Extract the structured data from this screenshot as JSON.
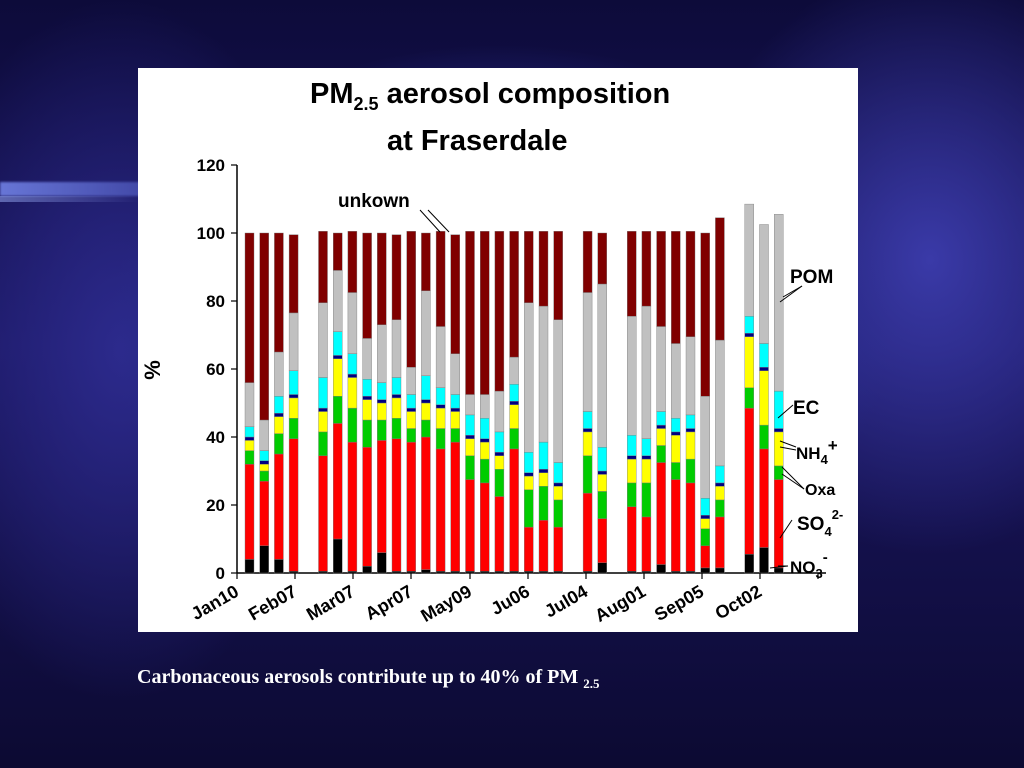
{
  "slide": {
    "caption_main": "Carbonaceous aerosols contribute up to 40% of PM",
    "caption_sub": "2.5"
  },
  "chart_data": {
    "type": "bar",
    "stacked": true,
    "title_line1_main": "PM",
    "title_line1_sub": "2.5",
    "title_line1_rest": " aerosol composition",
    "title_line2": "at Fraserdale",
    "ylabel": "%",
    "xlabel": "",
    "ylim": [
      0,
      120
    ],
    "yticks": [
      0,
      20,
      40,
      60,
      80,
      100,
      120
    ],
    "xtick_labels": [
      "Jan10",
      "Feb07",
      "Mar07",
      "Apr07",
      "May09",
      "Ju06",
      "Jul04",
      "Aug01",
      "Sep05",
      "Oct02"
    ],
    "grid": false,
    "legend_placement": "right, annotations with pointer lines",
    "series_order": [
      "NO3",
      "SO4",
      "Oxa",
      "NH4",
      "EC",
      "POM",
      "unknown"
    ],
    "series_colors": {
      "NO3": "#000000",
      "SO4": "#ff0000",
      "Oxa": "#00cc00",
      "NH4": "#ffff00",
      "EC": "#000080",
      "POM": "#00ffff",
      "unknown_gray": "#c0c0c0",
      "unknown_dark": "#800000"
    },
    "annotations": {
      "unknown": "unkown",
      "pom": "POM",
      "ec": "EC",
      "nh4": "NH",
      "nh4_sub": "4",
      "nh4_sup": "+",
      "oxa": "Oxa",
      "so4": "SO",
      "so4_sub": "4",
      "so4_sup": "2-",
      "no3": "NO",
      "no3_sub": "3",
      "no3_sup": "-"
    },
    "bars": [
      {
        "NO3": 4,
        "SO4": 28,
        "Oxa": 4,
        "NH4": 3,
        "EC": 1,
        "POM": 3,
        "gray": 13,
        "dark": 44
      },
      {
        "NO3": 8,
        "SO4": 19,
        "Oxa": 3,
        "NH4": 2,
        "EC": 1,
        "POM": 3,
        "gray": 9,
        "dark": 55
      },
      {
        "NO3": 4,
        "SO4": 31,
        "Oxa": 6,
        "NH4": 5,
        "EC": 1,
        "POM": 5,
        "gray": 13,
        "dark": 35
      },
      {
        "NO3": 0.5,
        "SO4": 39,
        "Oxa": 6,
        "NH4": 6,
        "EC": 1,
        "POM": 7,
        "gray": 17,
        "dark": 23
      },
      {
        "gap": true
      },
      {
        "NO3": 0.5,
        "SO4": 34,
        "Oxa": 7,
        "NH4": 6,
        "EC": 1,
        "POM": 9,
        "gray": 22,
        "dark": 21
      },
      {
        "NO3": 10,
        "SO4": 34,
        "Oxa": 8,
        "NH4": 11,
        "EC": 1,
        "POM": 7,
        "gray": 18,
        "dark": 11
      },
      {
        "NO3": 0.5,
        "SO4": 38,
        "Oxa": 10,
        "NH4": 9,
        "EC": 1,
        "POM": 6,
        "gray": 18,
        "dark": 18
      },
      {
        "NO3": 2,
        "SO4": 35,
        "Oxa": 8,
        "NH4": 6,
        "EC": 1,
        "POM": 5,
        "gray": 12,
        "dark": 31
      },
      {
        "NO3": 6,
        "SO4": 33,
        "Oxa": 6,
        "NH4": 5,
        "EC": 1,
        "POM": 5,
        "gray": 17,
        "dark": 27
      },
      {
        "NO3": 0.5,
        "SO4": 39,
        "Oxa": 6,
        "NH4": 6,
        "EC": 1,
        "POM": 5,
        "gray": 17,
        "dark": 25
      },
      {
        "NO3": 0.5,
        "SO4": 38,
        "Oxa": 4,
        "NH4": 5,
        "EC": 1,
        "POM": 4,
        "gray": 8,
        "dark": 40
      },
      {
        "NO3": 1,
        "SO4": 39,
        "Oxa": 5,
        "NH4": 5,
        "EC": 1,
        "POM": 7,
        "gray": 25,
        "dark": 17
      },
      {
        "NO3": 0.5,
        "SO4": 36,
        "Oxa": 6,
        "NH4": 6,
        "EC": 1,
        "POM": 5,
        "gray": 18,
        "dark": 28
      },
      {
        "NO3": 0.5,
        "SO4": 38,
        "Oxa": 4,
        "NH4": 5,
        "EC": 1,
        "POM": 4,
        "gray": 12,
        "dark": 35
      },
      {
        "NO3": 0.5,
        "SO4": 27,
        "Oxa": 7,
        "NH4": 5,
        "EC": 1,
        "POM": 6,
        "gray": 6,
        "dark": 48
      },
      {
        "NO3": 0.5,
        "SO4": 26,
        "Oxa": 7,
        "NH4": 5,
        "EC": 1,
        "POM": 6,
        "gray": 7,
        "dark": 48
      },
      {
        "NO3": 0.5,
        "SO4": 22,
        "Oxa": 8,
        "NH4": 4,
        "EC": 1,
        "POM": 6,
        "gray": 12,
        "dark": 47
      },
      {
        "NO3": 0.5,
        "SO4": 36,
        "Oxa": 6,
        "NH4": 7,
        "EC": 1,
        "POM": 5,
        "gray": 8,
        "dark": 37
      },
      {
        "NO3": 0.5,
        "SO4": 13,
        "Oxa": 11,
        "NH4": 4,
        "EC": 1,
        "POM": 6,
        "gray": 44,
        "dark": 21
      },
      {
        "NO3": 0.5,
        "SO4": 15,
        "Oxa": 10,
        "NH4": 4,
        "EC": 1,
        "POM": 8,
        "gray": 40,
        "dark": 22
      },
      {
        "NO3": 0.5,
        "SO4": 13,
        "Oxa": 8,
        "NH4": 4,
        "EC": 1,
        "POM": 6,
        "gray": 42,
        "dark": 26
      },
      {
        "gap": true
      },
      {
        "NO3": 0.5,
        "SO4": 23,
        "Oxa": 11,
        "NH4": 7,
        "EC": 1,
        "POM": 5,
        "gray": 35,
        "dark": 18
      },
      {
        "NO3": 3,
        "SO4": 13,
        "Oxa": 8,
        "NH4": 5,
        "EC": 1,
        "POM": 7,
        "gray": 48,
        "dark": 15
      },
      {
        "gap": true
      },
      {
        "NO3": 0.5,
        "SO4": 19,
        "Oxa": 7,
        "NH4": 7,
        "EC": 1,
        "POM": 6,
        "gray": 35,
        "dark": 25
      },
      {
        "NO3": 0.5,
        "SO4": 16,
        "Oxa": 10,
        "NH4": 7,
        "EC": 1,
        "POM": 5,
        "gray": 39,
        "dark": 22
      },
      {
        "NO3": 2.5,
        "SO4": 30,
        "Oxa": 5,
        "NH4": 5,
        "EC": 1,
        "POM": 4,
        "gray": 25,
        "dark": 28
      },
      {
        "NO3": 0.5,
        "SO4": 27,
        "Oxa": 5,
        "NH4": 8,
        "EC": 1,
        "POM": 4,
        "gray": 22,
        "dark": 33
      },
      {
        "NO3": 0.5,
        "SO4": 26,
        "Oxa": 7,
        "NH4": 8,
        "EC": 1,
        "POM": 4,
        "gray": 23,
        "dark": 31
      },
      {
        "NO3": 1.5,
        "SO4": 6.5,
        "Oxa": 5,
        "NH4": 3,
        "EC": 1,
        "POM": 5,
        "gray": 30,
        "dark": 48
      },
      {
        "NO3": 1.5,
        "SO4": 15,
        "Oxa": 5,
        "NH4": 4,
        "EC": 1,
        "POM": 5,
        "gray": 37,
        "dark": 36
      },
      {
        "gap": true
      },
      {
        "NO3": 5.5,
        "SO4": 43,
        "Oxa": 6,
        "NH4": 15,
        "EC": 1,
        "POM": 5,
        "gray": 33
      },
      {
        "NO3": 7.5,
        "SO4": 29,
        "Oxa": 7,
        "NH4": 16,
        "EC": 1,
        "POM": 7,
        "gray": 35
      },
      {
        "NO3": 1.5,
        "SO4": 26,
        "Oxa": 4,
        "NH4": 10,
        "EC": 1,
        "POM": 11,
        "gray": 52
      }
    ]
  }
}
